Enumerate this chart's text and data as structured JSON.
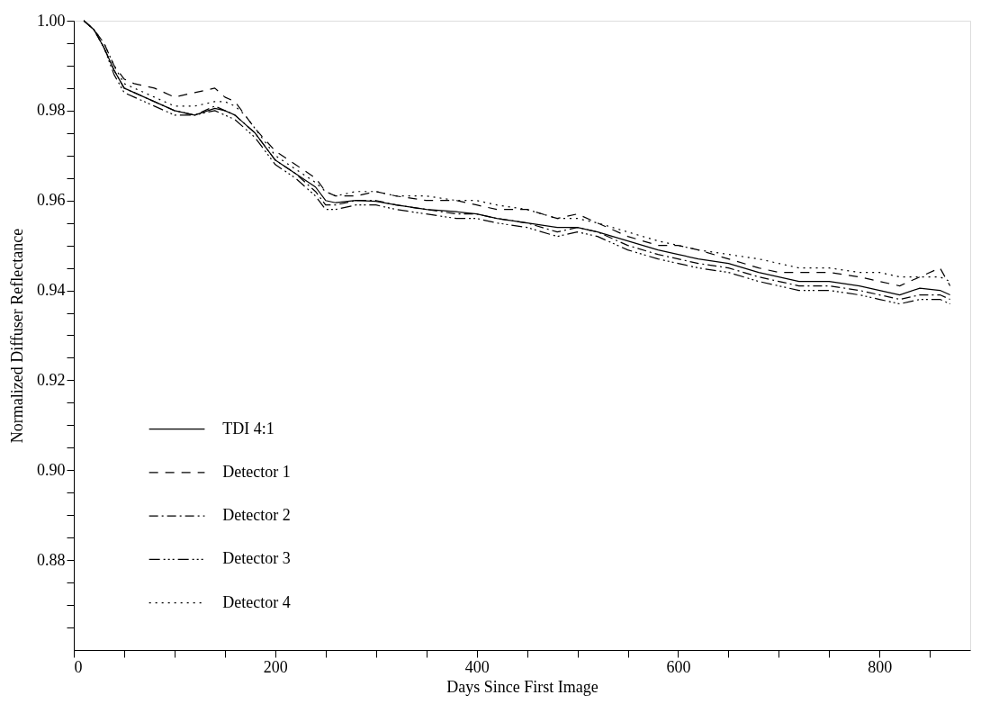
{
  "chart_data": {
    "type": "line",
    "xlabel": "Days Since First Image",
    "ylabel": "Normalized Diffuser Reflectance",
    "x": [
      10,
      20,
      30,
      40,
      50,
      60,
      80,
      100,
      120,
      140,
      150,
      160,
      170,
      180,
      200,
      220,
      240,
      250,
      260,
      280,
      300,
      320,
      350,
      380,
      400,
      420,
      450,
      480,
      500,
      520,
      550,
      580,
      600,
      620,
      650,
      680,
      700,
      720,
      750,
      780,
      800,
      820,
      840,
      860,
      870
    ],
    "xlim": [
      0,
      890
    ],
    "ylim": [
      0.86,
      1.0
    ],
    "xticks": [
      0,
      {
        "value": 50,
        "label": null
      },
      {
        "value": 100,
        "label": null
      },
      {
        "value": 150,
        "label": null
      },
      200,
      {
        "value": 250,
        "label": null
      },
      {
        "value": 300,
        "label": null
      },
      {
        "value": 350,
        "label": null
      },
      400,
      {
        "value": 450,
        "label": null
      },
      {
        "value": 500,
        "label": null
      },
      {
        "value": 550,
        "label": null
      },
      600,
      {
        "value": 650,
        "label": null
      },
      {
        "value": 700,
        "label": null
      },
      {
        "value": 750,
        "label": null
      },
      800,
      {
        "value": 850,
        "label": null
      }
    ],
    "yticks": [
      {
        "value": 0.865,
        "label": null
      },
      {
        "value": 0.87,
        "label": null
      },
      {
        "value": 0.875,
        "label": null
      },
      {
        "value": 0.88,
        "label": "0.88"
      },
      {
        "value": 0.885,
        "label": null
      },
      {
        "value": 0.89,
        "label": null
      },
      {
        "value": 0.895,
        "label": null
      },
      {
        "value": 0.9,
        "label": "0.90"
      },
      {
        "value": 0.905,
        "label": null
      },
      {
        "value": 0.91,
        "label": null
      },
      {
        "value": 0.915,
        "label": null
      },
      {
        "value": 0.92,
        "label": "0.92"
      },
      {
        "value": 0.925,
        "label": null
      },
      {
        "value": 0.93,
        "label": null
      },
      {
        "value": 0.935,
        "label": null
      },
      {
        "value": 0.94,
        "label": "0.94"
      },
      {
        "value": 0.945,
        "label": null
      },
      {
        "value": 0.95,
        "label": null
      },
      {
        "value": 0.955,
        "label": null
      },
      {
        "value": 0.96,
        "label": "0.96"
      },
      {
        "value": 0.965,
        "label": null
      },
      {
        "value": 0.97,
        "label": null
      },
      {
        "value": 0.975,
        "label": null
      },
      {
        "value": 0.98,
        "label": "0.98"
      },
      {
        "value": 0.985,
        "label": null
      },
      {
        "value": 0.99,
        "label": null
      },
      {
        "value": 0.995,
        "label": null
      },
      {
        "value": 1.0,
        "label": "1.00"
      }
    ],
    "grid": false,
    "legend": "bottom left",
    "marker": "none",
    "series": [
      {
        "name": "TDI 4:1",
        "color": "#000000",
        "line_style": "solid",
        "values": [
          1.0,
          0.998,
          0.994,
          0.989,
          0.985,
          0.984,
          0.982,
          0.98,
          0.979,
          0.9805,
          0.98,
          0.979,
          0.977,
          0.975,
          0.969,
          0.966,
          0.963,
          0.96,
          0.9595,
          0.96,
          0.9598,
          0.959,
          0.958,
          0.9575,
          0.957,
          0.956,
          0.955,
          0.954,
          0.954,
          0.953,
          0.951,
          0.949,
          0.948,
          0.947,
          0.946,
          0.944,
          0.943,
          0.942,
          0.942,
          0.941,
          0.94,
          0.939,
          0.9405,
          0.94,
          0.939
        ]
      },
      {
        "name": "Detector 1",
        "color": "#000000",
        "line_style": "dashed",
        "values": [
          1.0,
          0.998,
          0.995,
          0.99,
          0.987,
          0.986,
          0.985,
          0.983,
          0.984,
          0.985,
          0.983,
          0.982,
          0.979,
          0.976,
          0.971,
          0.968,
          0.965,
          0.962,
          0.961,
          0.961,
          0.962,
          0.961,
          0.96,
          0.96,
          0.959,
          0.958,
          0.958,
          0.956,
          0.957,
          0.955,
          0.952,
          0.95,
          0.95,
          0.949,
          0.947,
          0.945,
          0.944,
          0.944,
          0.944,
          0.943,
          0.942,
          0.941,
          0.943,
          0.945,
          0.941
        ]
      },
      {
        "name": "Detector 2",
        "color": "#000000",
        "line_style": "dashdot",
        "values": [
          1.0,
          0.998,
          0.994,
          0.989,
          0.985,
          0.984,
          0.982,
          0.98,
          0.979,
          0.981,
          0.98,
          0.979,
          0.977,
          0.975,
          0.969,
          0.966,
          0.962,
          0.959,
          0.959,
          0.96,
          0.96,
          0.959,
          0.958,
          0.957,
          0.957,
          0.956,
          0.955,
          0.953,
          0.954,
          0.953,
          0.95,
          0.948,
          0.947,
          0.946,
          0.945,
          0.943,
          0.942,
          0.941,
          0.941,
          0.94,
          0.939,
          0.938,
          0.939,
          0.939,
          0.938
        ]
      },
      {
        "name": "Detector 3",
        "color": "#000000",
        "line_style": "dashdotdotdot",
        "values": [
          1.0,
          0.998,
          0.994,
          0.988,
          0.984,
          0.983,
          0.981,
          0.979,
          0.979,
          0.98,
          0.979,
          0.978,
          0.976,
          0.974,
          0.968,
          0.965,
          0.961,
          0.958,
          0.958,
          0.959,
          0.959,
          0.958,
          0.957,
          0.956,
          0.956,
          0.955,
          0.954,
          0.952,
          0.953,
          0.952,
          0.949,
          0.947,
          0.946,
          0.945,
          0.944,
          0.942,
          0.941,
          0.94,
          0.94,
          0.939,
          0.938,
          0.937,
          0.938,
          0.938,
          0.937
        ]
      },
      {
        "name": "Detector 4",
        "color": "#000000",
        "line_style": "dotted",
        "values": [
          1.0,
          0.998,
          0.995,
          0.99,
          0.986,
          0.985,
          0.983,
          0.981,
          0.981,
          0.982,
          0.982,
          0.981,
          0.979,
          0.976,
          0.97,
          0.967,
          0.964,
          0.962,
          0.961,
          0.962,
          0.962,
          0.961,
          0.961,
          0.96,
          0.96,
          0.959,
          0.958,
          0.956,
          0.956,
          0.955,
          0.953,
          0.951,
          0.95,
          0.949,
          0.948,
          0.947,
          0.946,
          0.945,
          0.945,
          0.944,
          0.944,
          0.943,
          0.943,
          0.943,
          0.942
        ]
      }
    ]
  }
}
